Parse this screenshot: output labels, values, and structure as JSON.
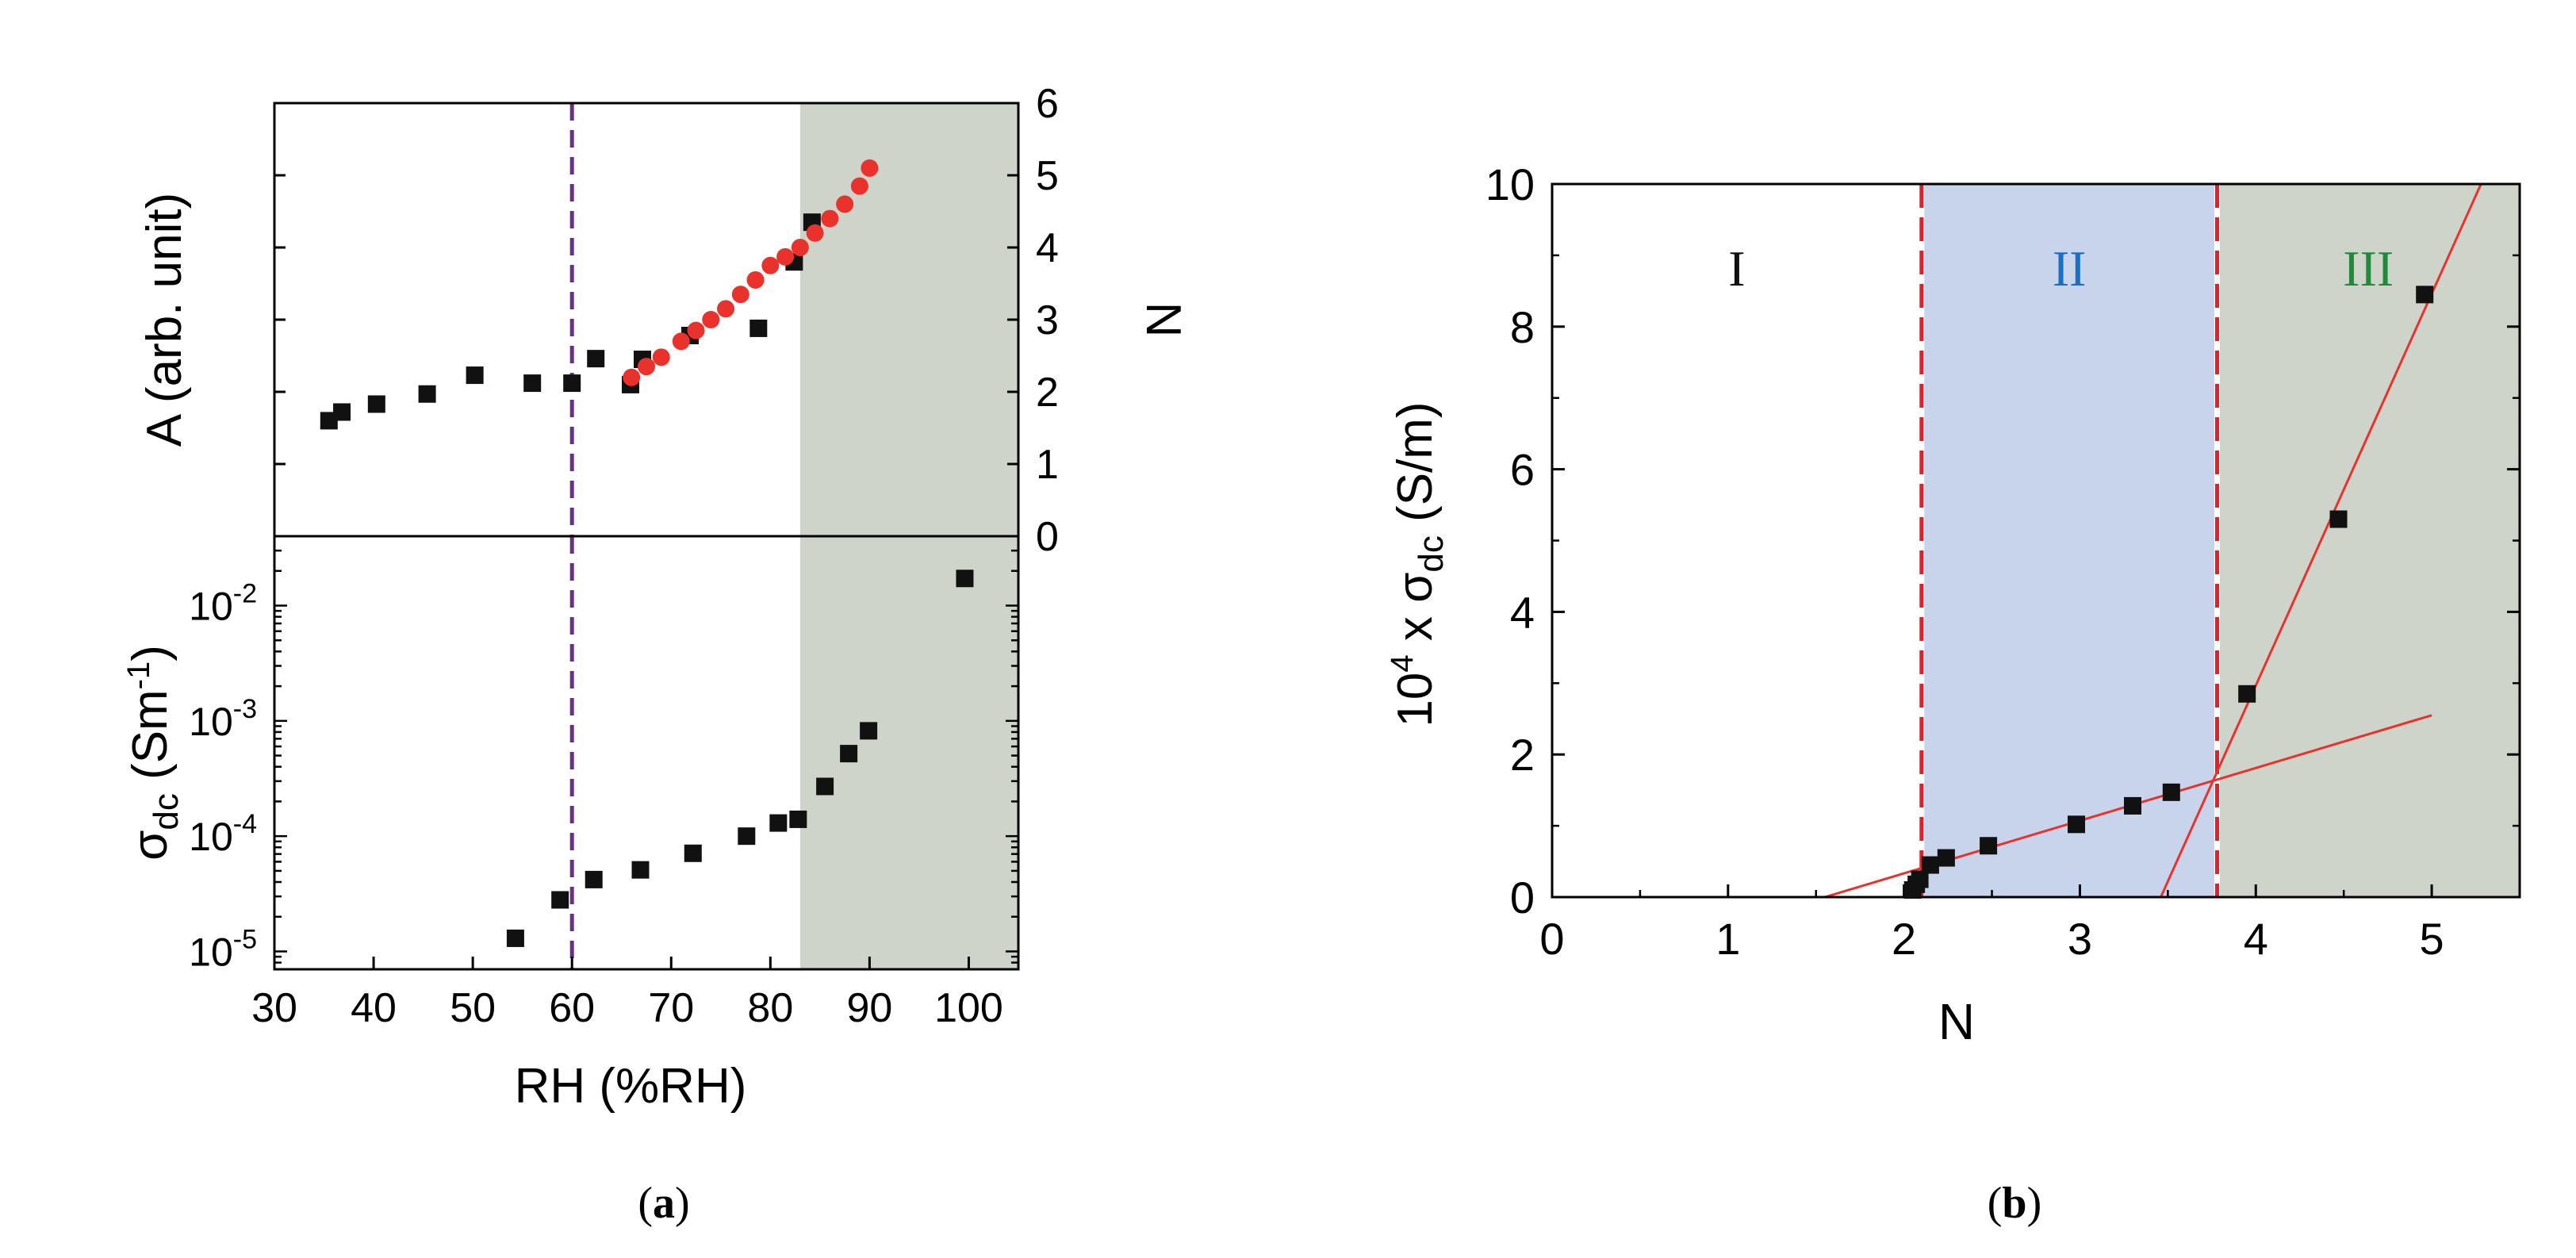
{
  "colors": {
    "shade_gray": "#cfd4cb",
    "shade_blue": "#c8d3ec",
    "marker_black": "#111111",
    "marker_red": "#e8322b",
    "dashed_purple": "#6b2e8e",
    "dashed_red": "#d8232a",
    "fit_line_red": "#e8322b",
    "label_blue": "#1a6fc4",
    "label_green": "#1f8a3a"
  },
  "chart_data": [
    {
      "id": "panel_a_top",
      "type": "scatter",
      "panel_label_prefix": "(",
      "panel_label_letter": "a",
      "panel_label_suffix": ")",
      "xlabel": "RH (%RH)",
      "ylabel_left": "A (arb. unit)",
      "ylabel_right": "N",
      "xlim": [
        30,
        105
      ],
      "ylim": [
        0,
        6
      ],
      "xticks": [
        30,
        40,
        50,
        60,
        70,
        80,
        90,
        100
      ],
      "yticks_right": [
        0,
        1,
        2,
        3,
        4,
        5,
        6
      ],
      "shaded_region_x": [
        83,
        105
      ],
      "vline_x": 60,
      "series": [
        {
          "name": "A",
          "marker": "square",
          "color": "#111111",
          "x": [
            35.5,
            36.8,
            40.3,
            45.4,
            50.2,
            56,
            60,
            62.4,
            65.9,
            67.1,
            71.9,
            78.8,
            82.4,
            84.2
          ],
          "y": [
            1.6,
            1.72,
            1.83,
            1.97,
            2.23,
            2.12,
            2.12,
            2.46,
            2.1,
            2.45,
            2.78,
            2.88,
            3.8,
            4.35
          ]
        },
        {
          "name": "N",
          "marker": "circle",
          "color": "#e8322b",
          "x": [
            66,
            67.5,
            69,
            71,
            72.5,
            74,
            75.5,
            77,
            78.5,
            80,
            81.5,
            83,
            84.5,
            86,
            87.5,
            89,
            90
          ],
          "y": [
            2.2,
            2.35,
            2.48,
            2.7,
            2.85,
            3.0,
            3.15,
            3.35,
            3.55,
            3.75,
            3.87,
            4.0,
            4.2,
            4.4,
            4.6,
            4.85,
            5.1
          ]
        }
      ]
    },
    {
      "id": "panel_a_bottom",
      "type": "scatter",
      "ylabel": "σdc (Sm-1)",
      "ylabel_main": "σ",
      "ylabel_sub": "dc",
      "ylabel_rest": " (Sm",
      "ylabel_sup": "-1",
      "ylabel_close": ")",
      "yscale": "log",
      "ylim": [
        7e-06,
        0.04
      ],
      "xlim": [
        30,
        105
      ],
      "yticks": [
        {
          "mantissa": "10",
          "exponent": "-5",
          "value": 1e-05
        },
        {
          "mantissa": "10",
          "exponent": "-4",
          "value": 0.0001
        },
        {
          "mantissa": "10",
          "exponent": "-3",
          "value": 0.001
        },
        {
          "mantissa": "10",
          "exponent": "-2",
          "value": 0.01
        }
      ],
      "shaded_region_x": [
        83,
        105
      ],
      "vline_x": 60,
      "series": [
        {
          "name": "sigma_dc",
          "marker": "square",
          "color": "#111111",
          "x": [
            54.3,
            58.8,
            62.2,
            66.9,
            72.2,
            77.6,
            80.8,
            82.8,
            85.5,
            87.9,
            89.9,
            99.6
          ],
          "y": [
            1.3e-05,
            2.8e-05,
            4.2e-05,
            5.1e-05,
            7.1e-05,
            0.0001,
            0.00013,
            0.00014,
            0.00027,
            0.00052,
            0.00082,
            0.0172
          ]
        }
      ]
    },
    {
      "id": "panel_b",
      "type": "scatter",
      "panel_label_prefix": "(",
      "panel_label_letter": "b",
      "panel_label_suffix": ")",
      "xlabel": "N",
      "ylabel": "10^4 x σdc (S/m)",
      "ylabel_base": "10",
      "ylabel_sup": "4",
      "ylabel_mid": " x σ",
      "ylabel_sub": "dc",
      "ylabel_end": " (S/m)",
      "xlim": [
        0,
        5.5
      ],
      "ylim": [
        0,
        10
      ],
      "xticks": [
        0,
        1,
        2,
        3,
        4,
        5
      ],
      "yticks": [
        0,
        2,
        4,
        6,
        8,
        10
      ],
      "regions": [
        {
          "label": "I",
          "x_from": 0,
          "x_to": 2.1,
          "label_x": 1.05
        },
        {
          "label": "II",
          "x_from": 2.1,
          "x_to": 3.78,
          "label_x": 2.94
        },
        {
          "label": "III",
          "x_from": 3.78,
          "x_to": 5.5,
          "label_x": 4.64
        }
      ],
      "vlines_x": [
        2.1,
        3.78
      ],
      "fit_lines": [
        {
          "x": [
            1.55,
            5.0
          ],
          "y": [
            0.0,
            2.55
          ]
        },
        {
          "x": [
            3.46,
            5.28
          ],
          "y": [
            0.0,
            10.0
          ]
        }
      ],
      "series": [
        {
          "name": "sigma_dc_vs_N",
          "marker": "square",
          "color": "#111111",
          "x": [
            2.05,
            2.07,
            2.09,
            2.15,
            2.24,
            2.48,
            2.98,
            3.3,
            3.52,
            3.95,
            4.47,
            4.96
          ],
          "y": [
            0.1,
            0.18,
            0.25,
            0.45,
            0.55,
            0.72,
            1.02,
            1.28,
            1.47,
            2.85,
            5.3,
            8.45
          ]
        }
      ]
    }
  ]
}
